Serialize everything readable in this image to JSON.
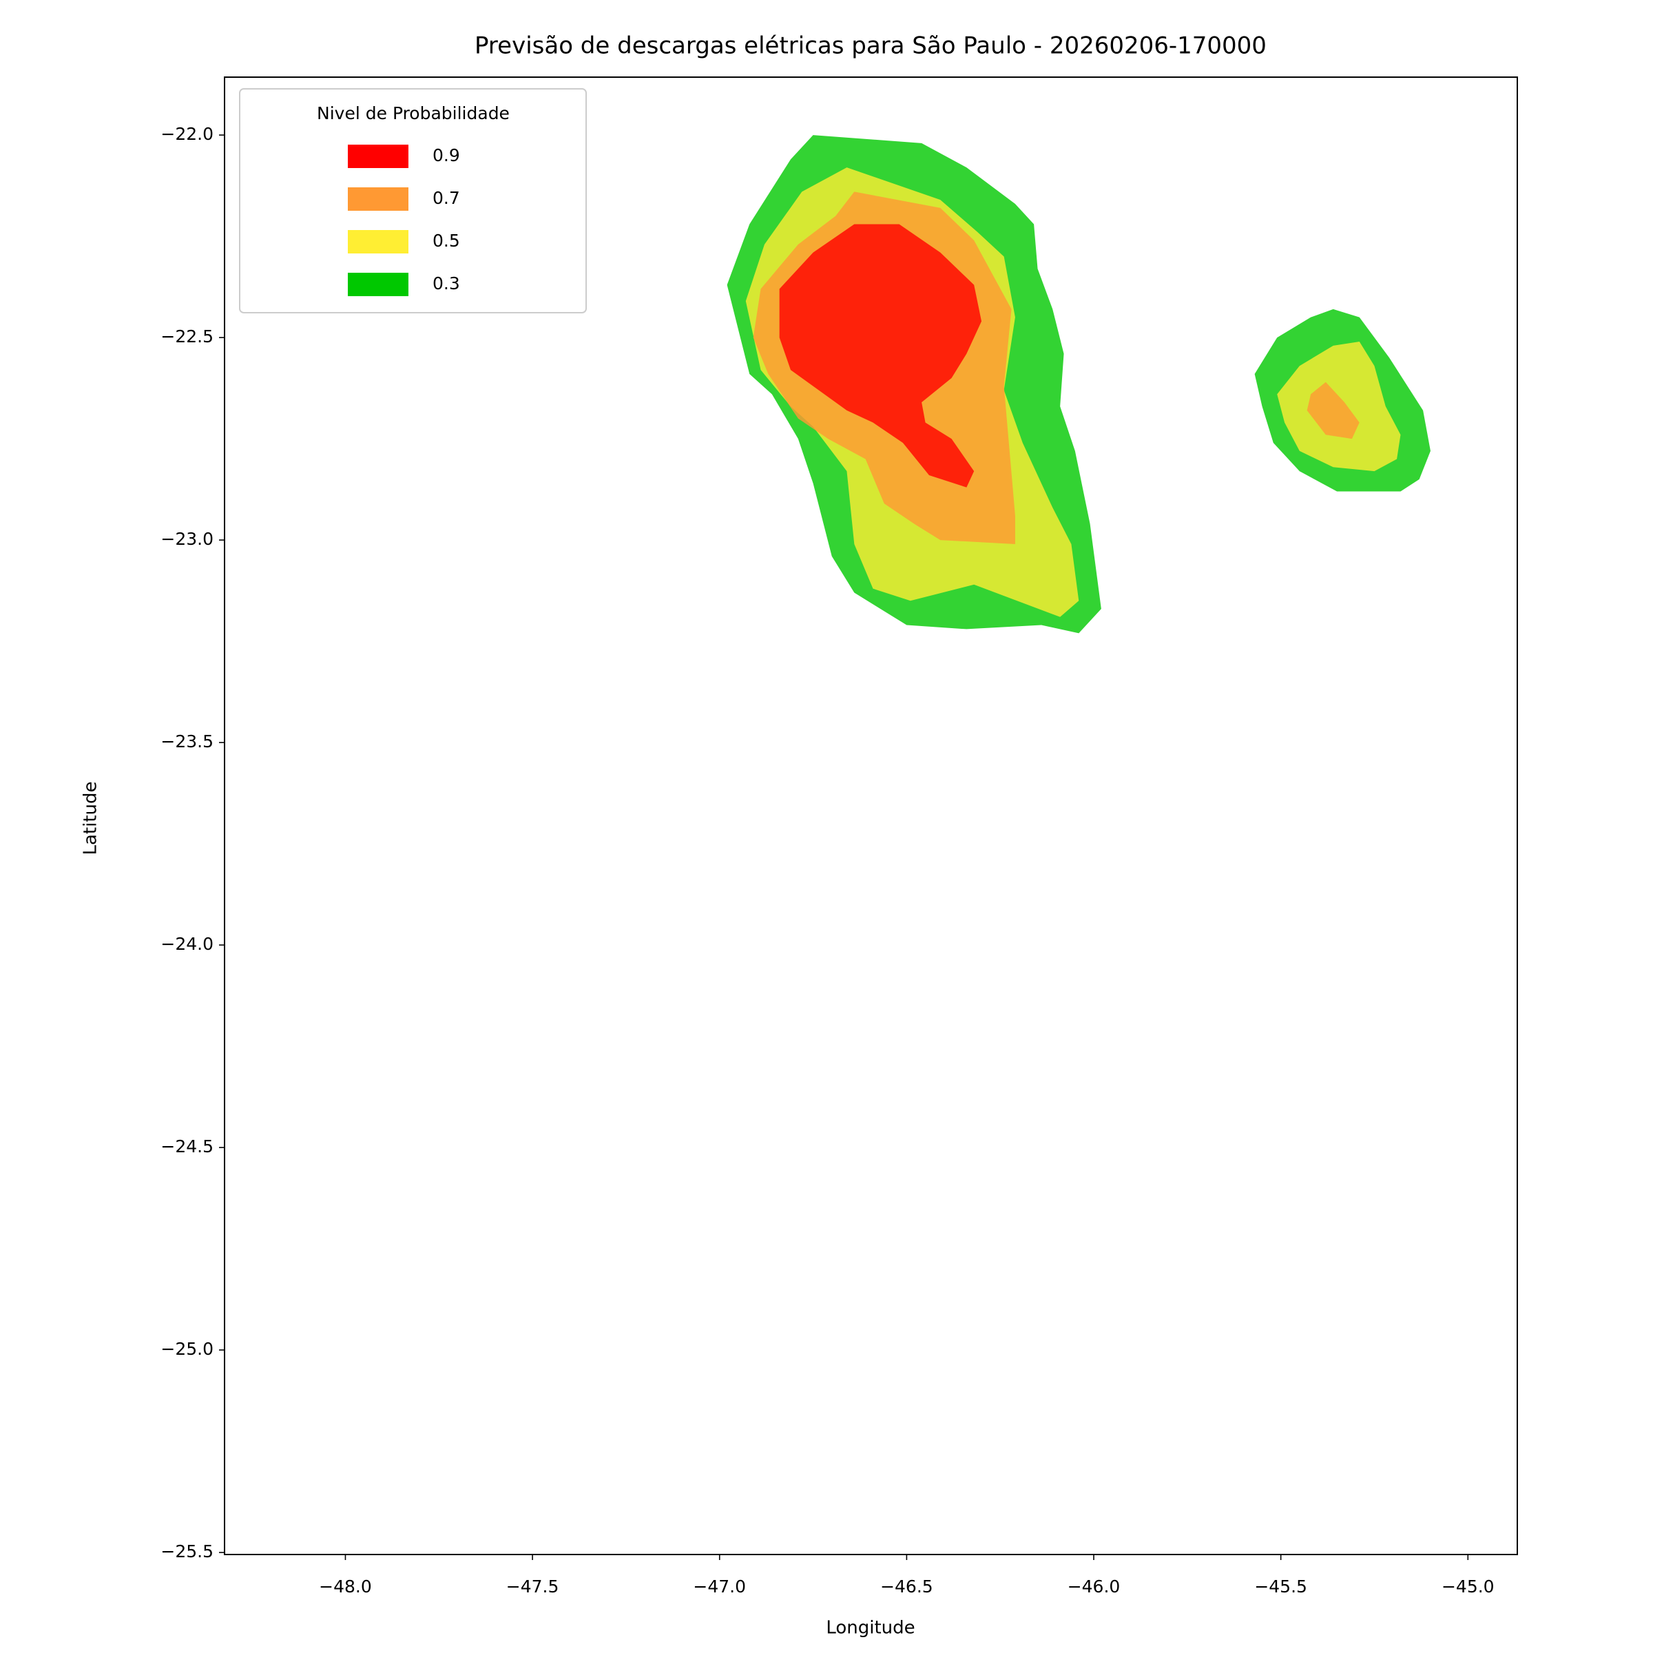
{
  "chart_data": {
    "type": "contour",
    "title": "Previsão de descargas elétricas para São Paulo - 20260206-170000",
    "xlabel": "Longitude",
    "ylabel": "Latitude",
    "legend_title": "Nivel de Probabilidade",
    "legend": "upper left",
    "xlim": [
      -48.323,
      -44.868
    ],
    "ylim": [
      -25.505,
      -21.857
    ],
    "xticks": [
      {
        "value": -48.0,
        "label": "−48.0"
      },
      {
        "value": -47.5,
        "label": "−47.5"
      },
      {
        "value": -47.0,
        "label": "−47.0"
      },
      {
        "value": -46.5,
        "label": "−46.5"
      },
      {
        "value": -46.0,
        "label": "−46.0"
      },
      {
        "value": -45.5,
        "label": "−45.5"
      },
      {
        "value": -45.0,
        "label": "−45.0"
      }
    ],
    "yticks": [
      {
        "value": -22.0,
        "label": "−22.0"
      },
      {
        "value": -22.5,
        "label": "−22.5"
      },
      {
        "value": -23.0,
        "label": "−23.0"
      },
      {
        "value": -23.5,
        "label": "−23.5"
      },
      {
        "value": -24.0,
        "label": "−24.0"
      },
      {
        "value": -24.5,
        "label": "−24.5"
      },
      {
        "value": -25.0,
        "label": "−25.0"
      },
      {
        "value": -25.5,
        "label": "−25.5"
      }
    ],
    "series": [
      {
        "name": "0.9",
        "color": "#ff0000",
        "regions": [
          {
            "x": [
              -46.64,
              -46.52,
              -46.41,
              -46.32,
              -46.3,
              -46.34,
              -46.38,
              -46.46,
              -46.45,
              -46.38,
              -46.35,
              -46.32,
              -46.34,
              -46.44,
              -46.51,
              -46.59,
              -46.66,
              -46.75,
              -46.81,
              -46.84,
              -46.84,
              -46.75
            ],
            "y": [
              -22.22,
              -22.22,
              -22.29,
              -22.37,
              -22.46,
              -22.54,
              -22.6,
              -22.66,
              -22.71,
              -22.75,
              -22.79,
              -22.83,
              -22.87,
              -22.84,
              -22.76,
              -22.71,
              -22.68,
              -22.62,
              -22.58,
              -22.5,
              -22.38,
              -22.29
            ]
          }
        ]
      },
      {
        "name": "0.7",
        "color": "#ff9933",
        "regions": [
          {
            "x": [
              -46.64,
              -46.41,
              -46.32,
              -46.22,
              -46.24,
              -46.21,
              -46.21,
              -46.41,
              -46.48,
              -46.56,
              -46.61,
              -46.71,
              -46.79,
              -46.87,
              -46.91,
              -46.89,
              -46.79,
              -46.69
            ],
            "y": [
              -22.14,
              -22.18,
              -22.26,
              -22.43,
              -22.62,
              -22.94,
              -23.01,
              -23.0,
              -22.96,
              -22.91,
              -22.8,
              -22.75,
              -22.7,
              -22.59,
              -22.5,
              -22.38,
              -22.27,
              -22.2
            ]
          },
          {
            "x": [
              -45.38,
              -45.33,
              -45.29,
              -45.31,
              -45.38,
              -45.43,
              -45.42
            ],
            "y": [
              -22.61,
              -22.66,
              -22.71,
              -22.75,
              -22.74,
              -22.68,
              -22.64
            ]
          }
        ]
      },
      {
        "name": "0.5",
        "color": "#ffee33",
        "regions": [
          {
            "x": [
              -46.66,
              -46.41,
              -46.31,
              -46.24,
              -46.21,
              -46.24,
              -46.19,
              -46.11,
              -46.06,
              -46.04,
              -46.09,
              -46.32,
              -46.49,
              -46.59,
              -46.64,
              -46.66,
              -46.75,
              -46.81,
              -46.89,
              -46.93,
              -46.88,
              -46.78
            ],
            "y": [
              -22.08,
              -22.16,
              -22.24,
              -22.3,
              -22.45,
              -22.63,
              -22.76,
              -22.92,
              -23.01,
              -23.15,
              -23.19,
              -23.11,
              -23.15,
              -23.12,
              -23.01,
              -22.83,
              -22.72,
              -22.67,
              -22.58,
              -22.41,
              -22.27,
              -22.14
            ]
          },
          {
            "x": [
              -45.36,
              -45.29,
              -45.25,
              -45.22,
              -45.18,
              -45.19,
              -45.25,
              -45.36,
              -45.45,
              -45.49,
              -45.51,
              -45.45
            ],
            "y": [
              -22.52,
              -22.51,
              -22.57,
              -22.67,
              -22.74,
              -22.8,
              -22.83,
              -22.82,
              -22.78,
              -22.71,
              -22.64,
              -22.57
            ]
          }
        ]
      },
      {
        "name": "0.3",
        "color": "#00c800",
        "regions": [
          {
            "x": [
              -46.75,
              -46.46,
              -46.34,
              -46.21,
              -46.16,
              -46.15,
              -46.11,
              -46.08,
              -46.09,
              -46.05,
              -46.01,
              -45.98,
              -46.04,
              -46.14,
              -46.34,
              -46.5,
              -46.64,
              -46.7,
              -46.75,
              -46.79,
              -46.86,
              -46.92,
              -46.98,
              -46.92,
              -46.81
            ],
            "y": [
              -22.0,
              -22.02,
              -22.08,
              -22.17,
              -22.22,
              -22.33,
              -22.43,
              -22.54,
              -22.67,
              -22.78,
              -22.96,
              -23.17,
              -23.23,
              -23.21,
              -23.22,
              -23.21,
              -23.13,
              -23.04,
              -22.86,
              -22.75,
              -22.64,
              -22.59,
              -22.37,
              -22.22,
              -22.06
            ]
          },
          {
            "x": [
              -45.36,
              -45.29,
              -45.21,
              -45.12,
              -45.1,
              -45.13,
              -45.18,
              -45.35,
              -45.45,
              -45.52,
              -45.55,
              -45.57,
              -45.51,
              -45.42
            ],
            "y": [
              -22.43,
              -22.45,
              -22.55,
              -22.68,
              -22.78,
              -22.85,
              -22.88,
              -22.88,
              -22.83,
              -22.76,
              -22.67,
              -22.59,
              -22.5,
              -22.45
            ]
          }
        ]
      }
    ]
  }
}
